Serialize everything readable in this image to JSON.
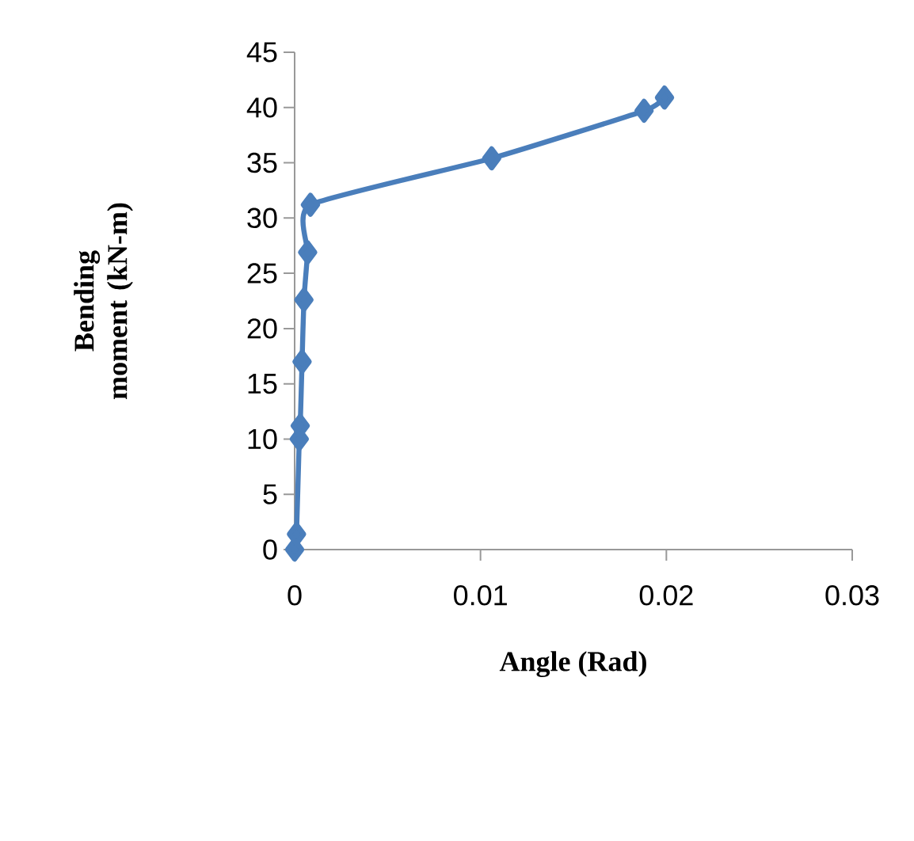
{
  "chart_data": {
    "type": "line",
    "xlabel": "Angle (Rad)",
    "ylabel": "Bending moment (kN-m)",
    "x": [
      0,
      0.0001,
      0.00025,
      0.0003,
      0.0004,
      0.0005,
      0.0007,
      0.00085,
      0.0106,
      0.0188,
      0.0199
    ],
    "series": [
      {
        "color": "#4a7ebb",
        "values": [
          0,
          1.4,
          10.0,
          11.2,
          17.0,
          22.6,
          26.9,
          31.2,
          35.4,
          39.7,
          40.9
        ]
      }
    ],
    "xlim": [
      0,
      0.03
    ],
    "ylim": [
      0,
      45
    ],
    "xticks": [
      0,
      0.01,
      0.02,
      0.03
    ],
    "yticks": [
      0,
      5,
      10,
      15,
      20,
      25,
      30,
      35,
      40,
      45
    ],
    "marker": "diamond",
    "line_style": "solid",
    "grid": false
  }
}
